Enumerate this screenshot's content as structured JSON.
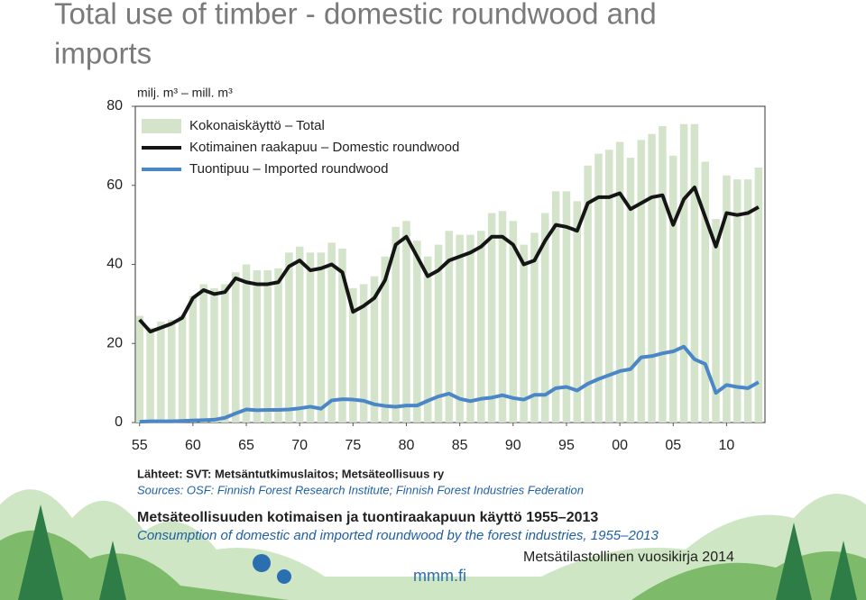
{
  "chart_data": {
    "type": "bar_line",
    "title": "Total use of timber - domestic roundwood and",
    "title_line2": "imports",
    "y_label": "milj. m³ – mill. m³",
    "x": [
      1955,
      1956,
      1957,
      1958,
      1959,
      1960,
      1961,
      1962,
      1963,
      1964,
      1965,
      1966,
      1967,
      1968,
      1969,
      1970,
      1971,
      1972,
      1973,
      1974,
      1975,
      1976,
      1977,
      1978,
      1979,
      1980,
      1981,
      1982,
      1983,
      1984,
      1985,
      1986,
      1987,
      1988,
      1989,
      1990,
      1991,
      1992,
      1993,
      1994,
      1995,
      1996,
      1997,
      1998,
      1999,
      2000,
      2001,
      2002,
      2003,
      2004,
      2005,
      2006,
      2007,
      2008,
      2009,
      2010,
      2011,
      2012,
      2013
    ],
    "series": [
      {
        "name": "Kokonaiskäyttö – Total",
        "kind": "bar",
        "color": "#d4e4cb",
        "values": [
          27,
          24,
          25.5,
          26,
          27,
          32,
          35,
          34,
          35,
          38,
          40,
          38.5,
          38.5,
          39,
          43,
          44.5,
          43,
          43,
          45.5,
          44,
          34,
          35,
          37,
          42,
          49.5,
          51,
          46,
          42,
          45,
          48.5,
          47.5,
          47.5,
          48.5,
          53,
          53.5,
          51,
          45,
          48,
          53,
          58.5,
          58.5,
          56,
          65,
          68,
          69,
          71,
          67,
          71.5,
          73,
          75,
          67.5,
          75.5,
          75.5,
          66,
          51.5,
          62.5,
          61.5,
          61.5,
          64.5
        ]
      },
      {
        "name": "Kotimainen raakapuu – Domestic roundwood",
        "kind": "line",
        "color": "#151515",
        "values": [
          26,
          23,
          24,
          25,
          26.5,
          31.5,
          33.5,
          32.5,
          33,
          36.5,
          35.5,
          35,
          35,
          35.5,
          39.5,
          41,
          38.5,
          39,
          40,
          38,
          28,
          29.5,
          31.5,
          36,
          45,
          47,
          42,
          37,
          38.5,
          41,
          42,
          43,
          44.5,
          47,
          47,
          45,
          40,
          41,
          46,
          50,
          49.5,
          48.5,
          55.5,
          57,
          57,
          58,
          54,
          55.5,
          57,
          57.5,
          50,
          56.5,
          59.5,
          52,
          44.5,
          53,
          52.5,
          53,
          54.5
        ]
      },
      {
        "name": "Tuontipuu – Imported roundwood",
        "kind": "line",
        "color": "#4a86c8",
        "values": [
          0.2,
          0.3,
          0.3,
          0.3,
          0.4,
          0.5,
          0.6,
          0.7,
          1.2,
          2.3,
          3.3,
          3.1,
          3.2,
          3.2,
          3.3,
          3.6,
          4,
          3.5,
          5.6,
          5.9,
          5.8,
          5.5,
          4.6,
          4.2,
          4,
          4.3,
          4.3,
          5.5,
          6.6,
          7.3,
          6,
          5.4,
          6,
          6.3,
          6.9,
          6.2,
          5.8,
          7,
          7,
          8.7,
          9,
          8.1,
          9.8,
          11,
          12,
          13,
          13.5,
          16.5,
          16.8,
          17.5,
          18,
          19.2,
          16,
          14.8,
          7.5,
          9.5,
          9,
          8.7,
          10.2
        ]
      }
    ],
    "xlim": [
      1954.6,
      2013.6
    ],
    "xticks": [
      {
        "value": 1955,
        "label": "55"
      },
      {
        "value": 1960,
        "label": "60"
      },
      {
        "value": 1965,
        "label": "65"
      },
      {
        "value": 1970,
        "label": "70"
      },
      {
        "value": 1975,
        "label": "75"
      },
      {
        "value": 1980,
        "label": "80"
      },
      {
        "value": 1985,
        "label": "85"
      },
      {
        "value": 1990,
        "label": "90"
      },
      {
        "value": 1995,
        "label": "95"
      },
      {
        "value": 2000,
        "label": "00"
      },
      {
        "value": 2005,
        "label": "05"
      },
      {
        "value": 2010,
        "label": "10"
      }
    ],
    "ylim": [
      0,
      80
    ],
    "yticks": [
      0,
      20,
      40,
      60,
      80
    ],
    "grid": false,
    "legend": "top-left",
    "source_fi": "Lähteet: SVT: Metsäntutkimuslaitos; Metsäteollisuus ry",
    "source_en": "Sources: OSF: Finnish Forest Research Institute; Finnish Forest Industries Federation",
    "caption_fi": "Metsäteollisuuden kotimaisen ja tuontiraakapuun käyttö 1955–2013",
    "caption_en": "Consumption of domestic and imported roundwood by the forest industries, 1955–2013",
    "publication": "Metsätilastollinen vuosikirja 2014",
    "logo": "mmm.fi"
  }
}
